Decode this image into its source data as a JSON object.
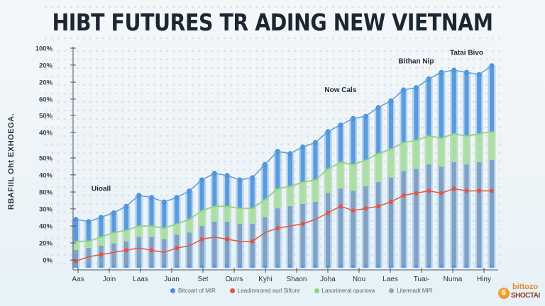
{
  "header": {
    "title": "HIBT FUTURES TR ADING NEW VIETNAM"
  },
  "colors": {
    "blue": "#4a90d9",
    "blue_light": "#a9cdf0",
    "green": "#8fd27c",
    "red": "#e8533f",
    "gray": "#9aa3ad",
    "axis": "#4a5360",
    "text": "#2a3440",
    "background": "#eef4f8"
  },
  "chart_data": {
    "type": "bar",
    "title": "HIBT FUTURES TR ADING NEW VIETNAM",
    "xlabel": "",
    "ylabel": "RBAFIIL Oht EXHOEGA.",
    "ytick_labels": [
      "100%",
      "20%",
      "20%",
      "60%",
      "50%",
      "40%",
      "50%",
      "40%",
      "80%",
      "30%",
      "40%",
      "20%",
      "0%"
    ],
    "ytick_positions": [
      100,
      92.3,
      84.5,
      76.8,
      69.4,
      61.6,
      50,
      42.3,
      34.5,
      26.8,
      19.0,
      11.3,
      3.5
    ],
    "ylim": [
      0,
      100
    ],
    "xtick_labels": [
      "Aas",
      "Join",
      "Laas",
      "Juan",
      "Set",
      "Ourrs",
      "Kyhi",
      "Shaon",
      "Joha",
      "Nou",
      "Laes",
      "Tuai-",
      "Numa",
      "Hiny"
    ],
    "grid": true,
    "legend_position": "bottom",
    "annotations": [
      {
        "text": "Uioall",
        "x_index": 2,
        "y": 35
      },
      {
        "text": "Now Cals",
        "x_index": 21,
        "y": 80
      },
      {
        "text": "Bithan Nip",
        "x_index": 27,
        "y": 93
      },
      {
        "text": "Tatai Bivo",
        "x_index": 31,
        "y": 97
      }
    ],
    "categories": [
      "1",
      "2",
      "3",
      "4",
      "5",
      "6",
      "7",
      "8",
      "9",
      "10",
      "11",
      "12",
      "13",
      "14",
      "15",
      "16",
      "17",
      "18",
      "19",
      "20",
      "21",
      "22",
      "23",
      "24",
      "25",
      "26",
      "27",
      "28",
      "29",
      "30",
      "31",
      "32",
      "33",
      "34"
    ],
    "series": [
      {
        "name": "Bitcoart of MIR",
        "type": "bar",
        "color": "#4a90d9",
        "values": [
          22,
          21,
          23,
          25,
          28,
          33,
          32,
          30,
          32,
          35,
          40,
          43,
          42,
          40,
          41,
          47,
          53,
          52,
          55,
          57,
          62,
          65,
          68,
          69,
          73,
          76,
          81,
          82,
          86,
          89,
          90,
          89,
          88,
          92
        ]
      },
      {
        "name": "Leadinmored aurl Sifture",
        "type": "line",
        "color": "#e8533f",
        "values": [
          3,
          5,
          6,
          7,
          8,
          9,
          8,
          7,
          9,
          10,
          13,
          14,
          13,
          12,
          12,
          16,
          18,
          19,
          20,
          22,
          25,
          28,
          26,
          27,
          28,
          30,
          33,
          34,
          35,
          34,
          36,
          35,
          35,
          35
        ]
      },
      {
        "name": "Lasorimeral opuriova",
        "type": "area",
        "color": "#8fd27c",
        "values": [
          12,
          12,
          14,
          16,
          17,
          19,
          19,
          18,
          20,
          22,
          26,
          28,
          28,
          27,
          27,
          31,
          36,
          37,
          39,
          40,
          45,
          48,
          47,
          49,
          52,
          54,
          57,
          58,
          60,
          59,
          61,
          60,
          61,
          62
        ]
      },
      {
        "name": "Litermadt MIR",
        "type": "bar",
        "color": "#9aa3ad",
        "values": [
          8,
          9,
          10,
          11,
          12,
          14,
          14,
          13,
          15,
          16,
          19,
          21,
          21,
          20,
          20,
          23,
          27,
          28,
          29,
          30,
          34,
          36,
          35,
          37,
          39,
          41,
          44,
          45,
          47,
          46,
          48,
          47,
          48,
          49
        ]
      }
    ]
  },
  "legend": {
    "items": [
      {
        "label": "Bitcoart of MIR",
        "color": "#4a90d9"
      },
      {
        "label": "Leadinmored aurl Sifture",
        "color": "#e8533f"
      },
      {
        "label": "Lasorimeral opuriova",
        "color": "#8fd27c"
      },
      {
        "label": "Litermadt MIR",
        "color": "#9aa3ad"
      }
    ]
  },
  "logo": {
    "line1": "bittozo",
    "line2": "SHOCTAI",
    "coin_symbol": "$"
  }
}
